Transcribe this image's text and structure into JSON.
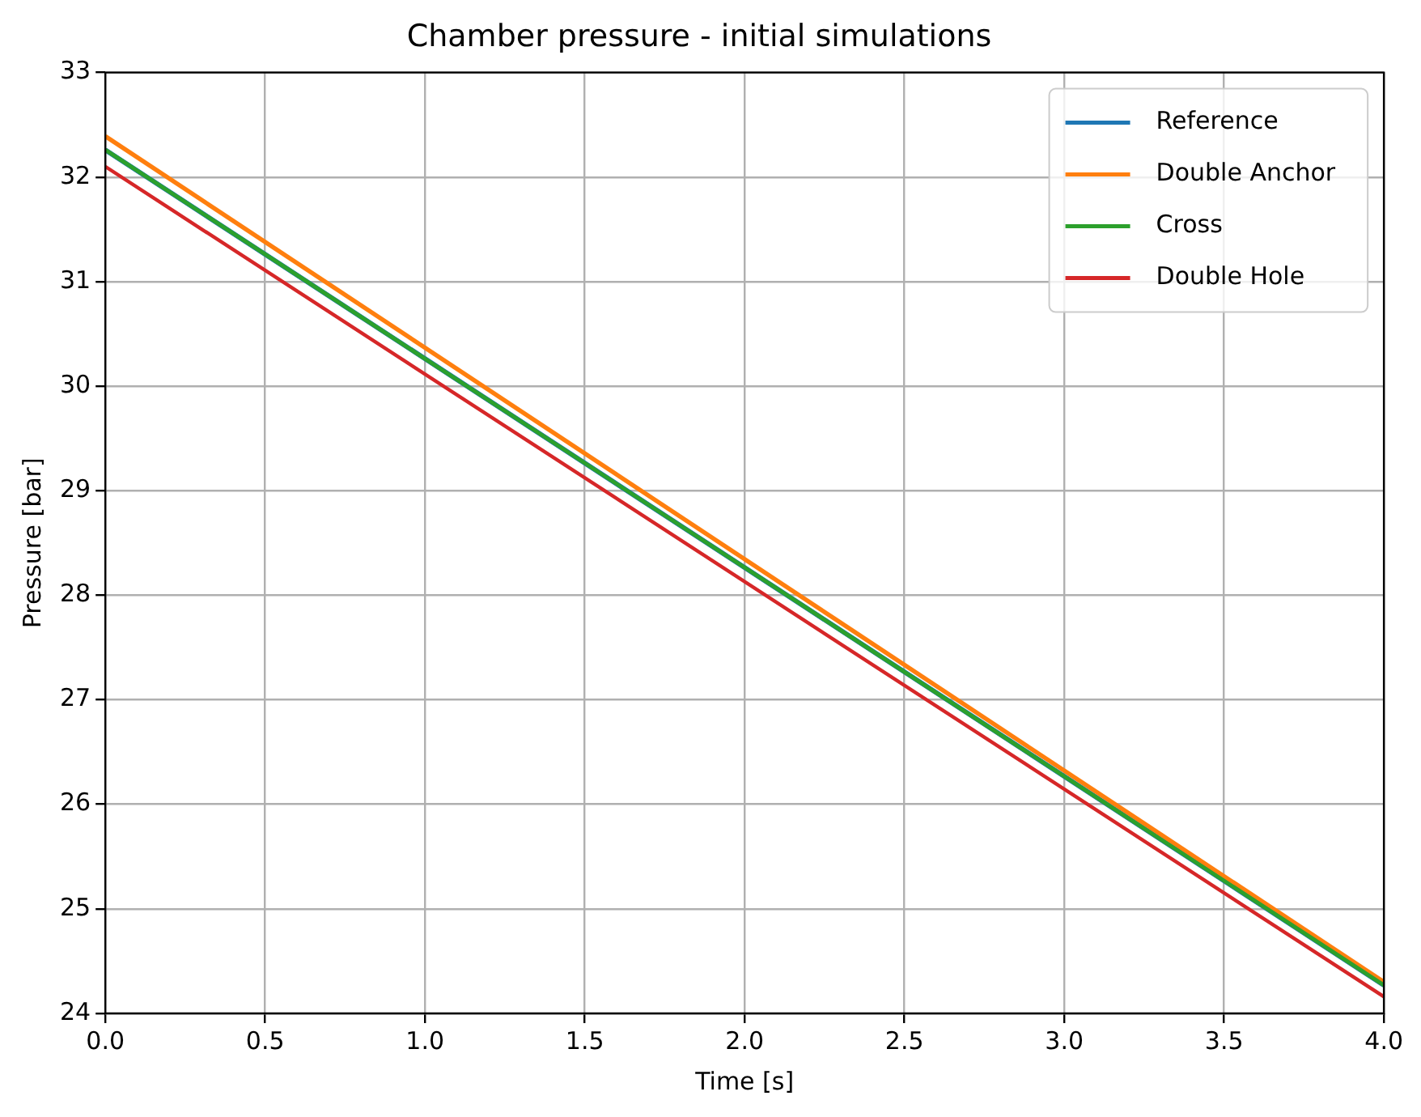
{
  "chart_data": {
    "type": "line",
    "title": "Chamber pressure - initial simulations",
    "xlabel": "Time [s]",
    "ylabel": "Pressure [bar]",
    "x": [
      0,
      4
    ],
    "series": [
      {
        "name": "Reference",
        "color": "#1f77b4",
        "values": [
          32.26,
          24.27
        ]
      },
      {
        "name": "Double Anchor",
        "color": "#ff7f0e",
        "values": [
          32.39,
          24.3
        ]
      },
      {
        "name": "Cross",
        "color": "#2ca02c",
        "values": [
          32.26,
          24.27
        ]
      },
      {
        "name": "Double Hole",
        "color": "#d62728",
        "values": [
          32.1,
          24.16
        ]
      }
    ],
    "xlim": [
      0,
      4
    ],
    "xticks": [
      {
        "value": 0,
        "label": "0.0"
      },
      0.5,
      {
        "value": 1,
        "label": "1.0"
      },
      1.5,
      {
        "value": 2,
        "label": "2.0"
      },
      2.5,
      {
        "value": 3,
        "label": "3.0"
      },
      3.5,
      {
        "value": 4,
        "label": "4.0"
      }
    ],
    "ylim": [
      24,
      33
    ],
    "yticks": [
      24,
      25,
      26,
      27,
      28,
      29,
      30,
      31,
      32,
      33
    ],
    "grid": true,
    "legend": "top right",
    "marker": "none",
    "line_style": "solid"
  }
}
